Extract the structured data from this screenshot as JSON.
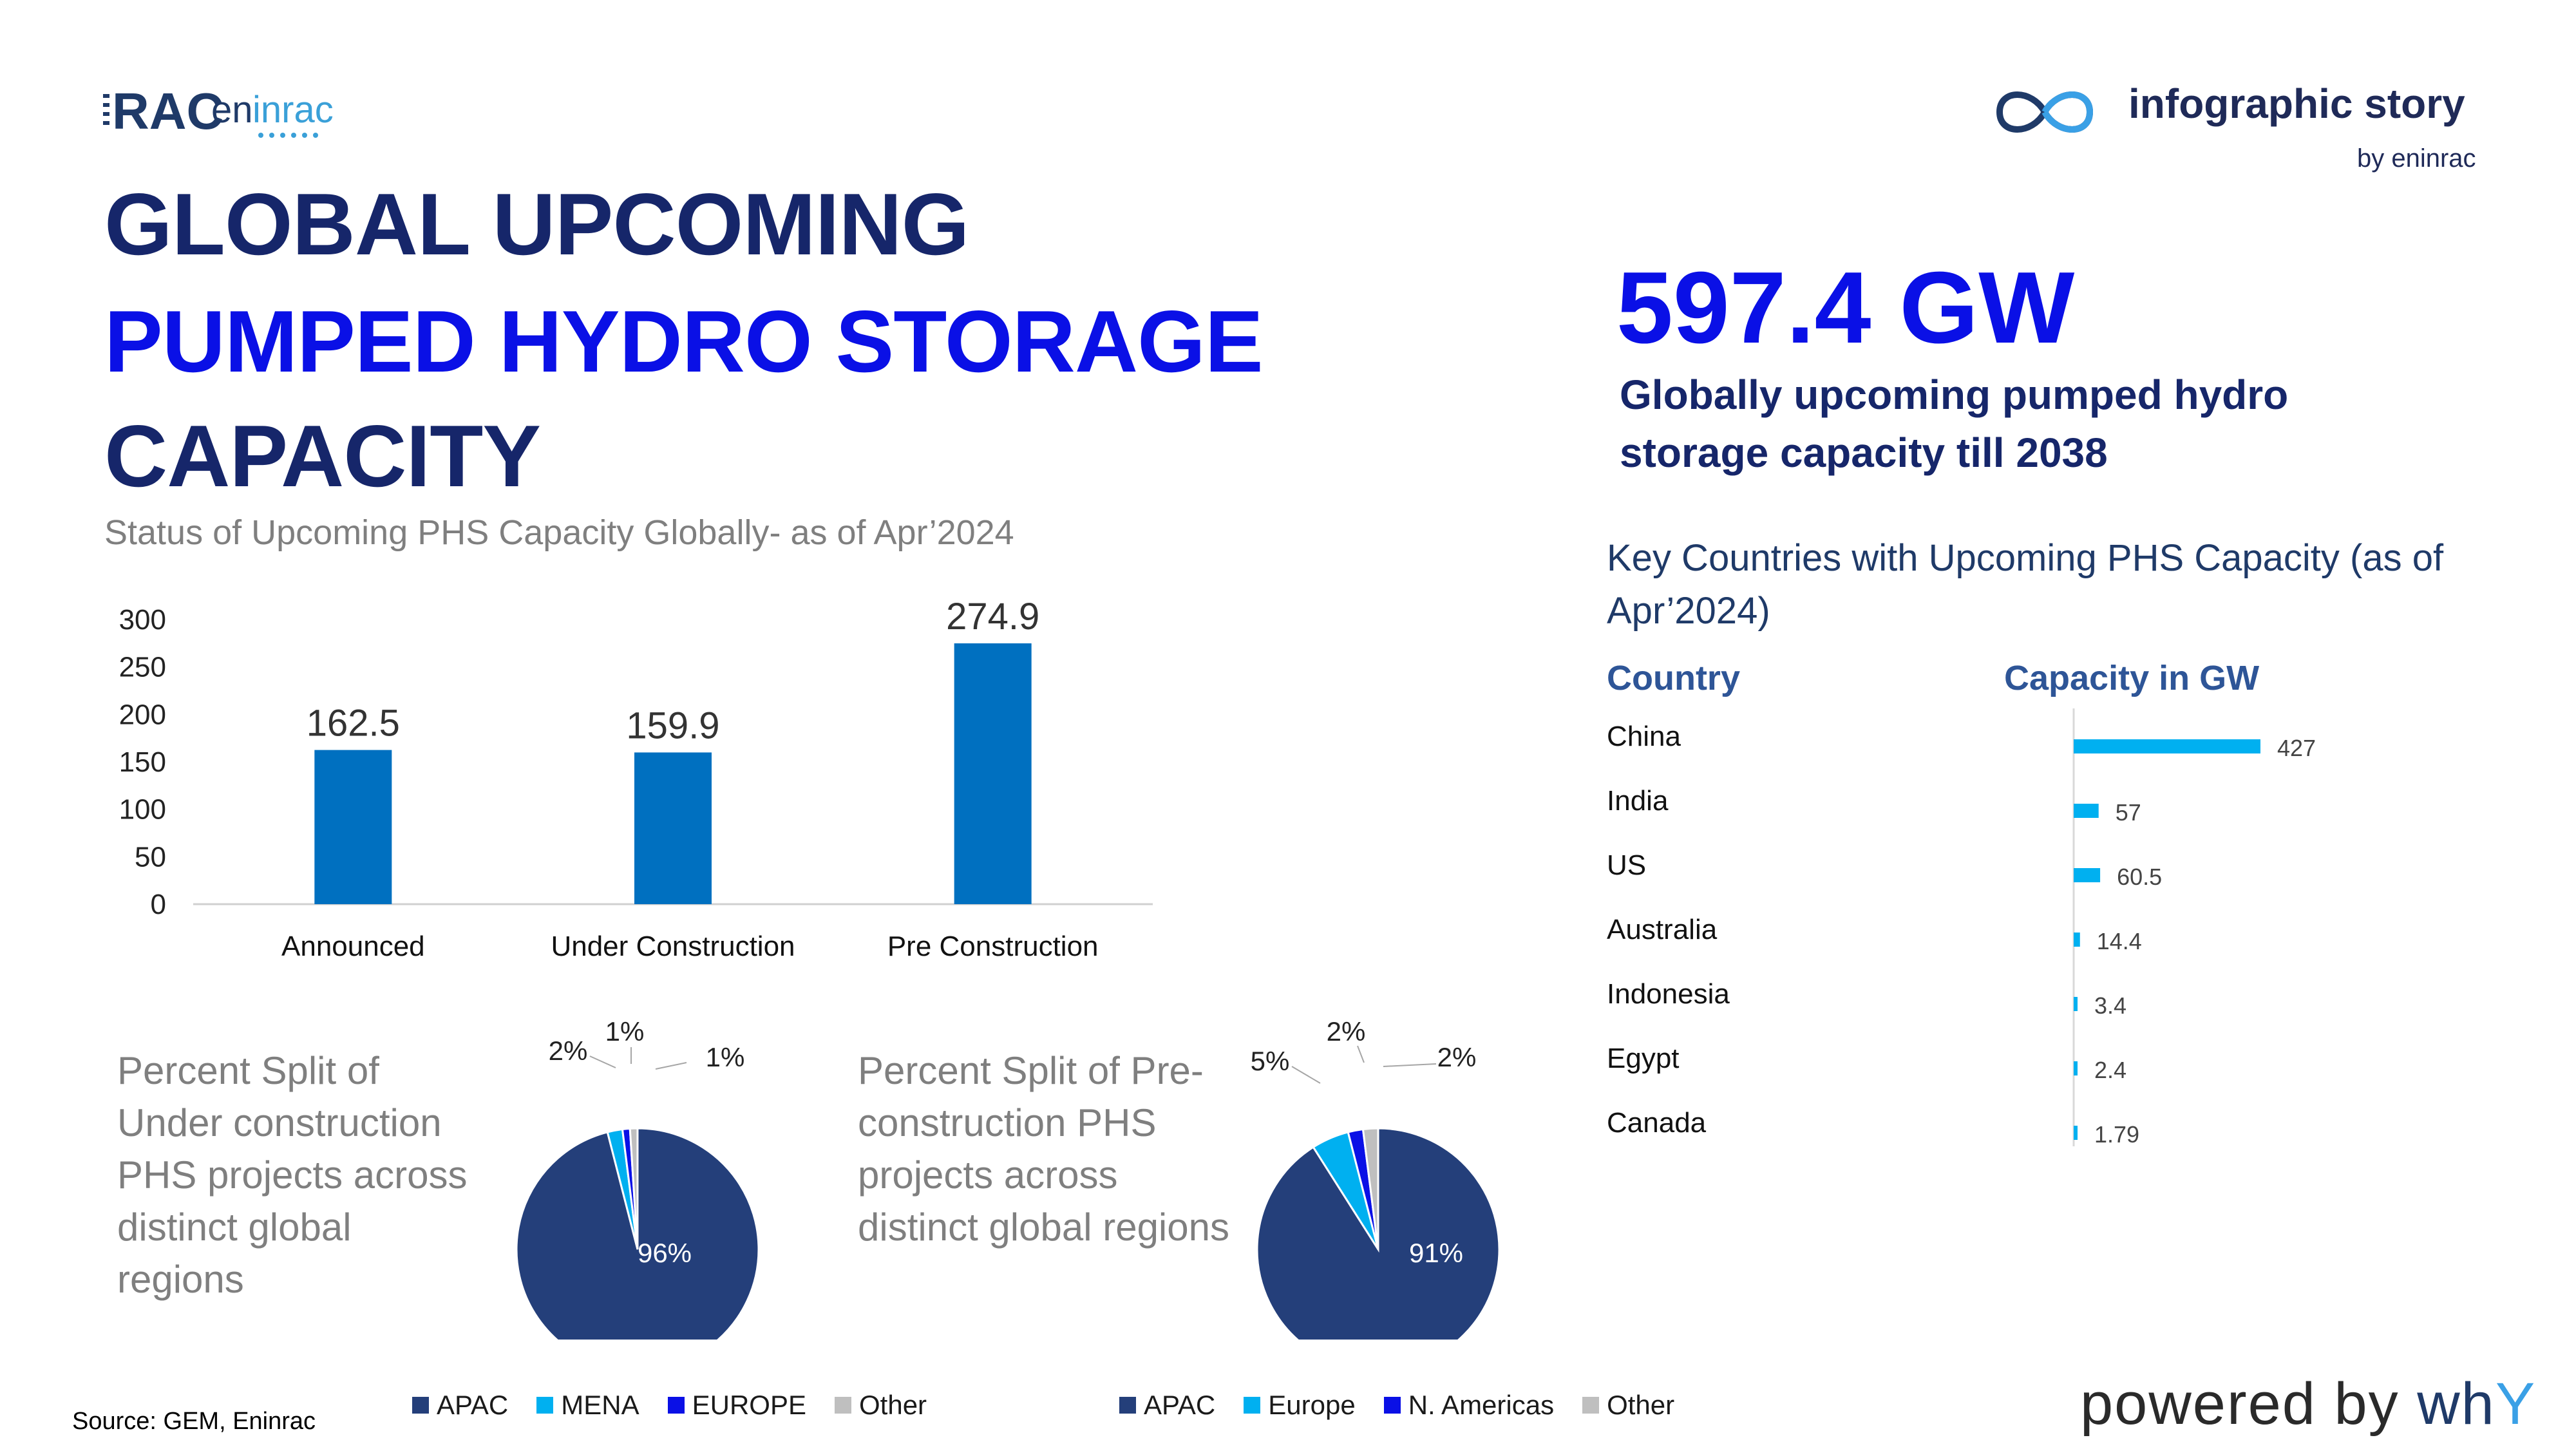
{
  "brand": {
    "logo_text": "RAC eninrac",
    "logo_icon": "eninrac-logo"
  },
  "story": {
    "icon": "infinity-loop-icon",
    "title": "infographic story",
    "subtitle": "by eninrac"
  },
  "title": {
    "line1": "GLOBAL UPCOMING",
    "line2": "PUMPED HYDRO STORAGE",
    "line3": "CAPACITY"
  },
  "kpi": {
    "value": "597.4 GW",
    "caption": "Globally upcoming pumped hydro storage capacity till 2038"
  },
  "bar_subtitle": "Status of Upcoming PHS Capacity Globally- as of Apr’2024",
  "country_chart_title": "Key Countries with Upcoming PHS Capacity (as of Apr’2024)",
  "country_headers": {
    "country": "Country",
    "capacity": "Capacity in GW"
  },
  "pie1_desc": "Percent Split of Under construction PHS projects across distinct global regions",
  "pie2_desc": "Percent Split of Pre-construction PHS projects across distinct global regions",
  "footer": {
    "source": "Source: GEM, Eninrac",
    "powered_prefix": "powered by ",
    "powered_brand": "wh",
    "powered_brand_y": "Y"
  },
  "colors": {
    "bar": "#0070c0",
    "navy": "#243f7a",
    "cyan": "#00b0f0",
    "blue": "#0a10e6",
    "grey": "#bfbfbf",
    "country_bar": "#00b0f0"
  },
  "chart_data": [
    {
      "id": "status",
      "type": "bar",
      "categories": [
        "Announced",
        "Under Construction",
        "Pre Construction"
      ],
      "values": [
        162.5,
        159.9,
        274.9
      ],
      "ylim": [
        0,
        300
      ],
      "yticks": [
        0,
        50,
        100,
        150,
        200,
        250,
        300
      ],
      "data_labels": [
        "162.5",
        "159.9",
        "274.9"
      ],
      "grid": false
    },
    {
      "id": "countries",
      "type": "bar",
      "orientation": "horizontal",
      "categories": [
        "China",
        "India",
        "US",
        "Australia",
        "Indonesia",
        "Egypt",
        "Canada"
      ],
      "values": [
        427,
        57,
        60.5,
        14.4,
        3.4,
        2.4,
        1.79
      ],
      "data_labels": [
        "427",
        "57",
        "60.5",
        "14.4",
        "3.4",
        "2.4",
        "1.79"
      ]
    },
    {
      "id": "under_construction_split",
      "type": "pie",
      "categories": [
        "APAC",
        "MENA",
        "EUROPE",
        "Other"
      ],
      "values": [
        96,
        2,
        1,
        1
      ],
      "data_labels": [
        "96%",
        "2%",
        "1%",
        "1%"
      ],
      "colors": [
        "#243f7a",
        "#00b0f0",
        "#0a10e6",
        "#bfbfbf"
      ],
      "legend": "bottom"
    },
    {
      "id": "pre_construction_split",
      "type": "pie",
      "categories": [
        "APAC",
        "Europe",
        "N. Americas",
        "Other"
      ],
      "values": [
        91,
        5,
        2,
        2
      ],
      "data_labels": [
        "91%",
        "5%",
        "2%",
        "2%"
      ],
      "colors": [
        "#243f7a",
        "#00b0f0",
        "#0a10e6",
        "#bfbfbf"
      ],
      "legend": "bottom"
    }
  ]
}
